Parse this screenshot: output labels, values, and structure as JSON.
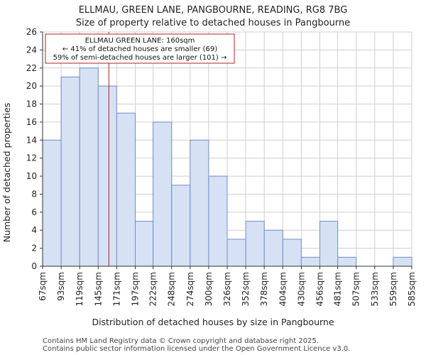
{
  "title": {
    "line1": "ELLMAU, GREEN LANE, PANGBOURNE, READING, RG8 7BG",
    "line2": "Size of property relative to detached houses in Pangbourne"
  },
  "footer": {
    "line1": "Contains HM Land Registry data © Crown copyright and database right 2025.",
    "line2": "Contains public sector information licensed under the Open Government Licence v3.0."
  },
  "annotation": {
    "line1": "ELLMAU GREEN LANE: 160sqm",
    "line2": "← 41% of detached houses are smaller (69)",
    "line3": "59% of semi-detached houses are larger (101) →"
  },
  "colors": {
    "bar_fill": "#d6e1f3",
    "bar_stroke": "#6f8fc8",
    "marker": "#b22222",
    "grid": "#cfcfcf"
  },
  "chart_data": {
    "type": "bar",
    "title": "Size of property relative to detached houses in Pangbourne",
    "xlabel": "Distribution of detached houses by size in Pangbourne",
    "ylabel": "Number of detached properties",
    "ylim": [
      0,
      26
    ],
    "yticks": [
      0,
      2,
      4,
      6,
      8,
      10,
      12,
      14,
      16,
      18,
      20,
      22,
      24,
      26
    ],
    "grid": true,
    "bin_edges": [
      67,
      93,
      119,
      145,
      171,
      197,
      222,
      248,
      274,
      300,
      326,
      352,
      378,
      404,
      430,
      456,
      481,
      507,
      533,
      559,
      585
    ],
    "xtick_labels": [
      "67sqm",
      "93sqm",
      "119sqm",
      "145sqm",
      "171sqm",
      "197sqm",
      "222sqm",
      "248sqm",
      "274sqm",
      "300sqm",
      "326sqm",
      "352sqm",
      "378sqm",
      "404sqm",
      "430sqm",
      "456sqm",
      "481sqm",
      "507sqm",
      "533sqm",
      "559sqm",
      "585sqm"
    ],
    "values": [
      14,
      21,
      22,
      20,
      17,
      5,
      16,
      9,
      14,
      10,
      3,
      5,
      4,
      3,
      1,
      5,
      1,
      0,
      0,
      1
    ],
    "marker_value": 160
  }
}
